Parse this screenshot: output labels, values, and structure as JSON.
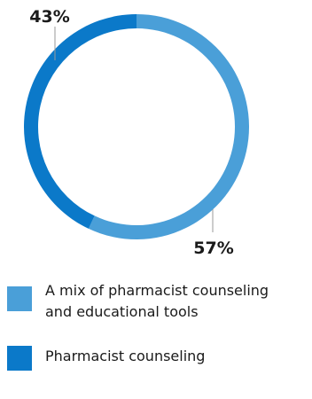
{
  "chart_data": {
    "type": "pie",
    "style": "donut",
    "slices": [
      {
        "label": "A mix of pharmacist counseling and educational tools",
        "value": 57,
        "display": "57%",
        "color": "#4a9fd8"
      },
      {
        "label": "Pharmacist counseling",
        "value": 43,
        "display": "43%",
        "color": "#0b79c9"
      }
    ]
  },
  "legend": {
    "items": [
      {
        "label_line1": "A mix of pharmacist counseling",
        "label_line2": "and educational tools",
        "color": "#4a9fd8"
      },
      {
        "label_line1": "Pharmacist counseling",
        "color": "#0b79c9"
      }
    ]
  }
}
